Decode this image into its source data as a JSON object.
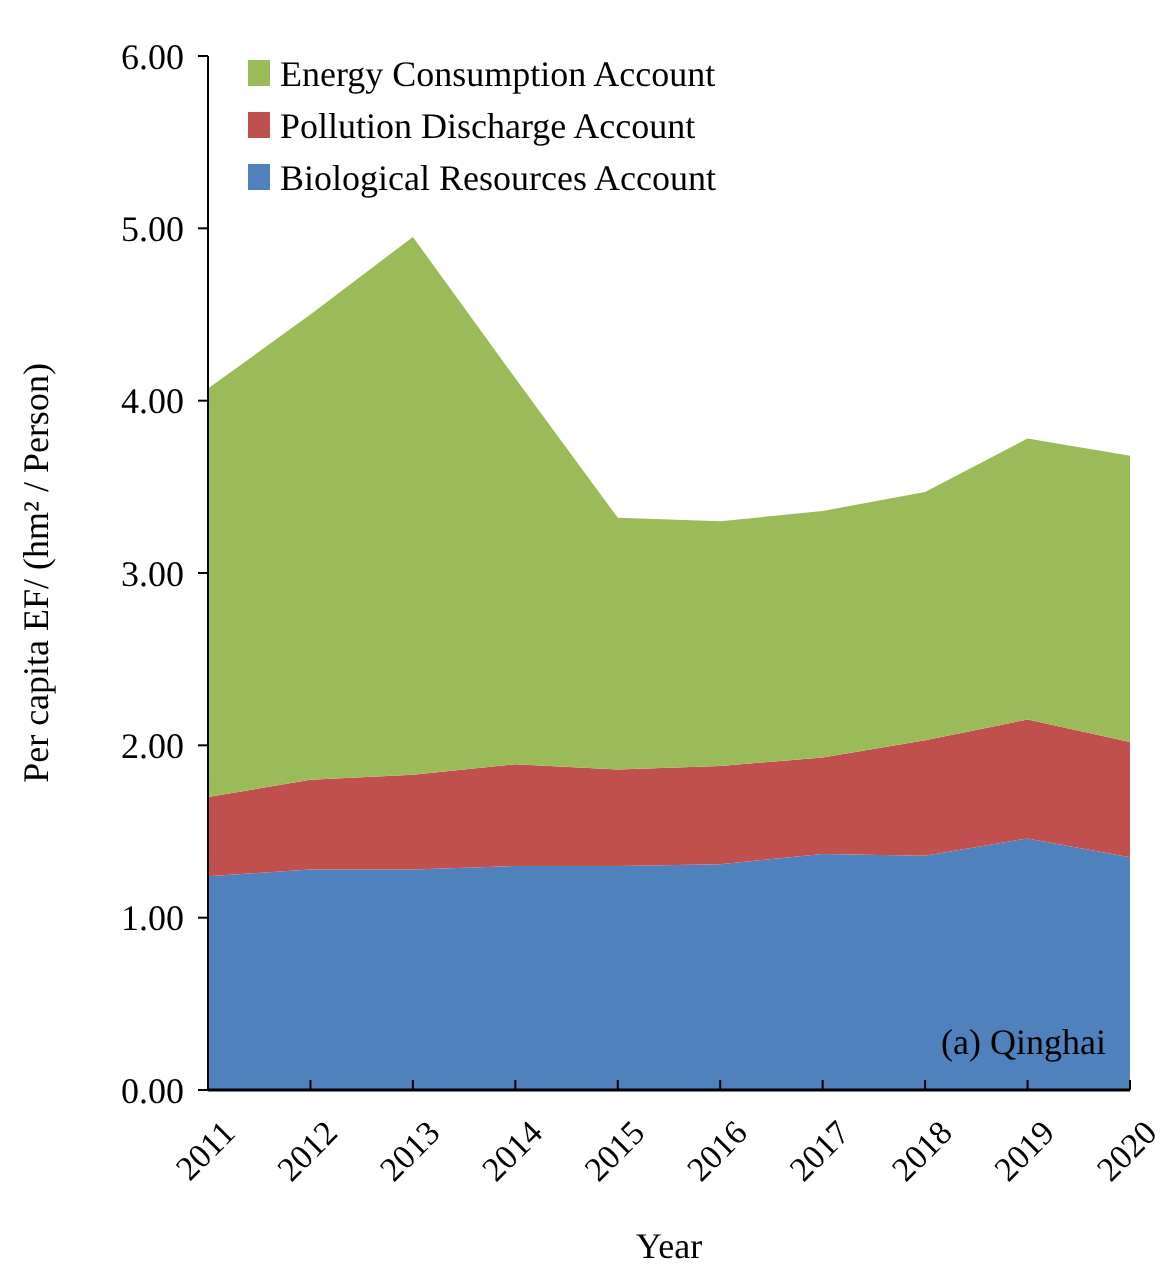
{
  "chart_data": {
    "type": "area",
    "stacked": true,
    "xlabel": "Year",
    "ylabel": "Per capita EF/ (hm² / Person)",
    "annotations": [
      "(a) Qinghai"
    ],
    "categories": [
      "2011",
      "2012",
      "2013",
      "2014",
      "2015",
      "2016",
      "2017",
      "2018",
      "2019",
      "2020"
    ],
    "series": [
      {
        "name": "Biological Resources Account",
        "color": "#4f81bd",
        "values": [
          1.24,
          1.28,
          1.28,
          1.3,
          1.3,
          1.31,
          1.37,
          1.36,
          1.46,
          1.35
        ]
      },
      {
        "name": "Pollution Discharge Account",
        "color": "#c0504d",
        "values": [
          0.46,
          0.52,
          0.55,
          0.59,
          0.56,
          0.57,
          0.56,
          0.67,
          0.69,
          0.67
        ]
      },
      {
        "name": "Energy Consumption Account",
        "color": "#9bbb59",
        "values": [
          2.37,
          2.7,
          3.12,
          2.24,
          1.46,
          1.42,
          1.43,
          1.44,
          1.63,
          1.66
        ]
      }
    ],
    "ylim": [
      0,
      6
    ],
    "yticks": [
      {
        "value": 0,
        "label": "0.00"
      },
      {
        "value": 1,
        "label": "1.00"
      },
      {
        "value": 2,
        "label": "2.00"
      },
      {
        "value": 3,
        "label": "3.00"
      },
      {
        "value": 4,
        "label": "4.00"
      },
      {
        "value": 5,
        "label": "5.00"
      },
      {
        "value": 6,
        "label": "6.00"
      }
    ],
    "legend": "top left",
    "grid": false
  }
}
